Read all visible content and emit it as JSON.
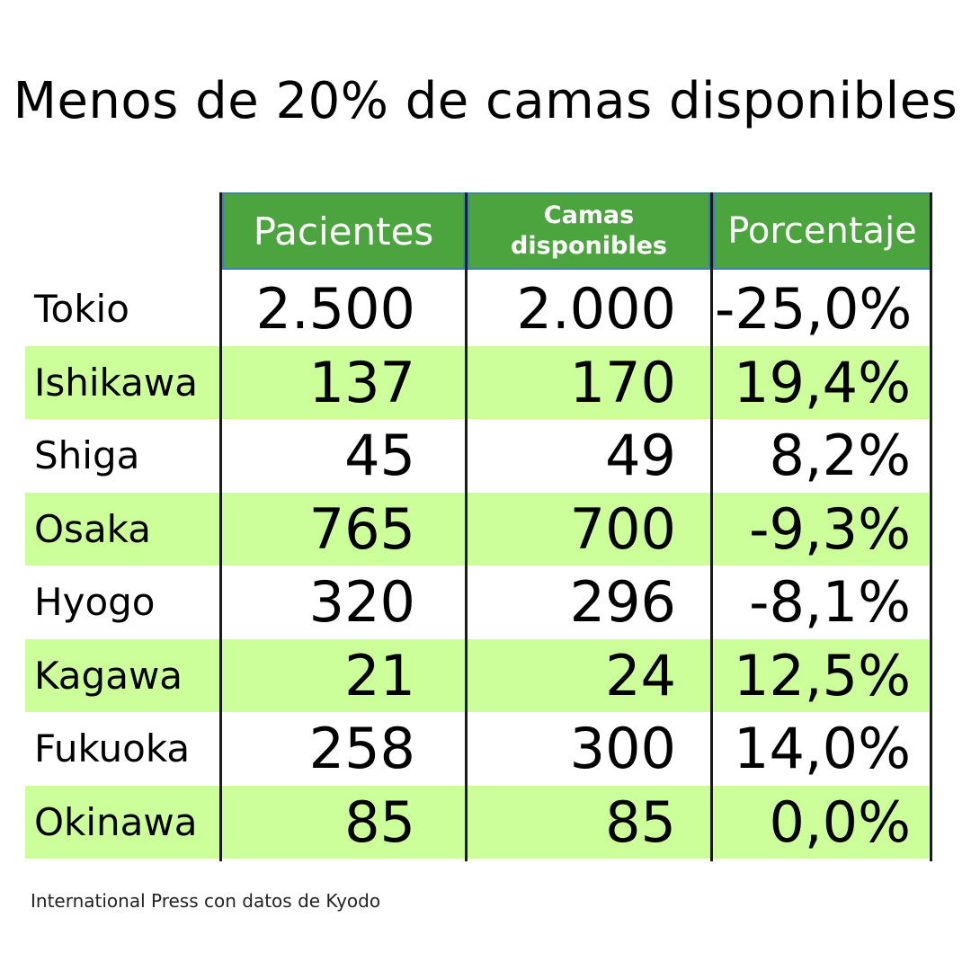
{
  "title": "Menos de 20% de camas disponibles",
  "source": "International Press con datos de Kyodo",
  "colors": {
    "header_bg": "#4ca43f",
    "header_border": "#3a85a8",
    "stripe": "#ccff99"
  },
  "chart_data": {
    "type": "table",
    "title": "Menos de 20% de camas disponibles",
    "columns": [
      "Pacientes",
      "Camas disponibles",
      "Porcentaje"
    ],
    "header_camas_lines": [
      "Camas",
      "disponibles"
    ],
    "rows": [
      {
        "name": "Tokio",
        "pacientes": "2.500",
        "camas": "2.000",
        "porcentaje": "-25,0%"
      },
      {
        "name": "Ishikawa",
        "pacientes": "137",
        "camas": "170",
        "porcentaje": "19,4%"
      },
      {
        "name": "Shiga",
        "pacientes": "45",
        "camas": "49",
        "porcentaje": "8,2%"
      },
      {
        "name": "Osaka",
        "pacientes": "765",
        "camas": "700",
        "porcentaje": "-9,3%"
      },
      {
        "name": "Hyogo",
        "pacientes": "320",
        "camas": "296",
        "porcentaje": "-8,1%"
      },
      {
        "name": "Kagawa",
        "pacientes": "21",
        "camas": "24",
        "porcentaje": "12,5%"
      },
      {
        "name": "Fukuoka",
        "pacientes": "258",
        "camas": "300",
        "porcentaje": "14,0%"
      },
      {
        "name": "Okinawa",
        "pacientes": "85",
        "camas": "85",
        "porcentaje": "0,0%"
      }
    ]
  }
}
